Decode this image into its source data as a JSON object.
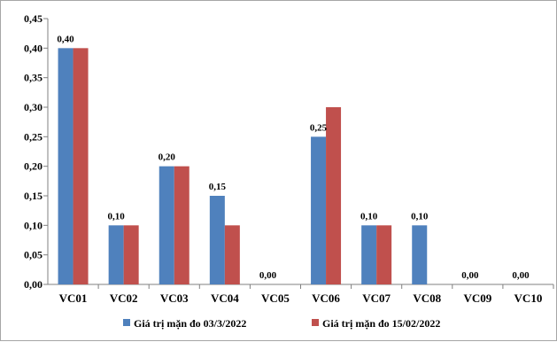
{
  "chart_data": {
    "type": "bar",
    "title": "",
    "xlabel": "",
    "ylabel": "",
    "categories": [
      "VC01",
      "VC02",
      "VC03",
      "VC04",
      "VC05",
      "VC06",
      "VC07",
      "VC08",
      "VC09",
      "VC10"
    ],
    "series": [
      {
        "name": "Giá trị mặn đo 03/3/2022",
        "color": "#4f81bd",
        "values": [
          0.4,
          0.1,
          0.2,
          0.15,
          0.0,
          0.25,
          0.1,
          0.1,
          0.0,
          0.0
        ]
      },
      {
        "name": "Giá trị mặn đo 15/02/2022",
        "color": "#c0504d",
        "values": [
          0.4,
          0.1,
          0.2,
          0.1,
          0.0,
          0.3,
          0.1,
          0.0,
          0.0,
          0.0
        ]
      }
    ],
    "data_labels": [
      "0,40",
      "0,10",
      "0,20",
      "0,15",
      "0,00",
      "0,25",
      "0,10",
      "0,10",
      "0,00",
      "0,00"
    ],
    "ylim": [
      0,
      0.45
    ],
    "yticks": [
      "0,00",
      "0,05",
      "0,10",
      "0,15",
      "0,20",
      "0,25",
      "0,30",
      "0,35",
      "0,40",
      "0,45"
    ],
    "grid": false,
    "legend_position": "bottom"
  }
}
